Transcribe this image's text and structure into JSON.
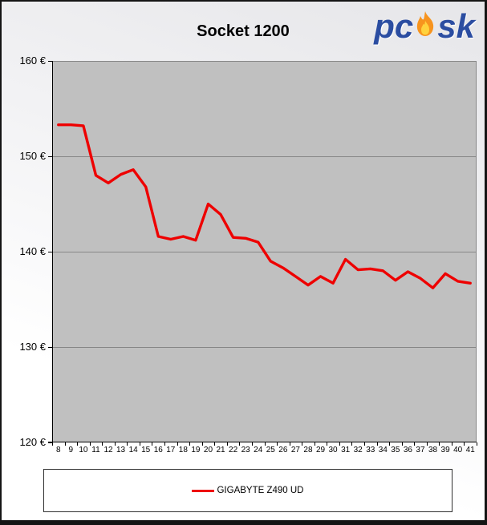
{
  "window": {
    "title": "Socket 1200"
  },
  "logo": {
    "text_left": "pc",
    "text_right": "sk",
    "blue": "#2b4da1",
    "flame_outer": "#f7941e",
    "flame_inner": "#ffd23d"
  },
  "chart_data": {
    "type": "line",
    "title": "Socket 1200",
    "x": [
      8,
      9,
      10,
      11,
      12,
      13,
      14,
      15,
      16,
      17,
      18,
      19,
      20,
      21,
      22,
      23,
      24,
      25,
      26,
      27,
      28,
      29,
      30,
      31,
      32,
      33,
      34,
      35,
      36,
      37,
      38,
      39,
      40,
      41
    ],
    "series": [
      {
        "name": "GIGABYTE Z490 UD",
        "color": "#ee0000",
        "values": [
          153.3,
          153.3,
          153.2,
          148.0,
          147.2,
          148.1,
          148.6,
          146.8,
          141.6,
          141.3,
          141.6,
          141.2,
          145.0,
          143.9,
          141.5,
          141.4,
          141.0,
          139.0,
          138.3,
          137.4,
          136.5,
          137.4,
          136.7,
          139.2,
          138.1,
          138.2,
          138.0,
          137.0,
          137.9,
          137.2,
          136.2,
          137.7,
          136.9,
          136.7
        ]
      }
    ],
    "ylim": [
      120,
      160
    ],
    "yticks": [
      160,
      150,
      140,
      130,
      120
    ],
    "ytick_suffix": " €",
    "grid": "horizontal",
    "plot_bg": "#c0c0c0",
    "grid_color": "#878787",
    "axis_color": "#000000",
    "legend_position": "bottom"
  },
  "legend": {
    "items": [
      {
        "label": "GIGABYTE Z490 UD",
        "color": "#ee0000"
      }
    ]
  }
}
